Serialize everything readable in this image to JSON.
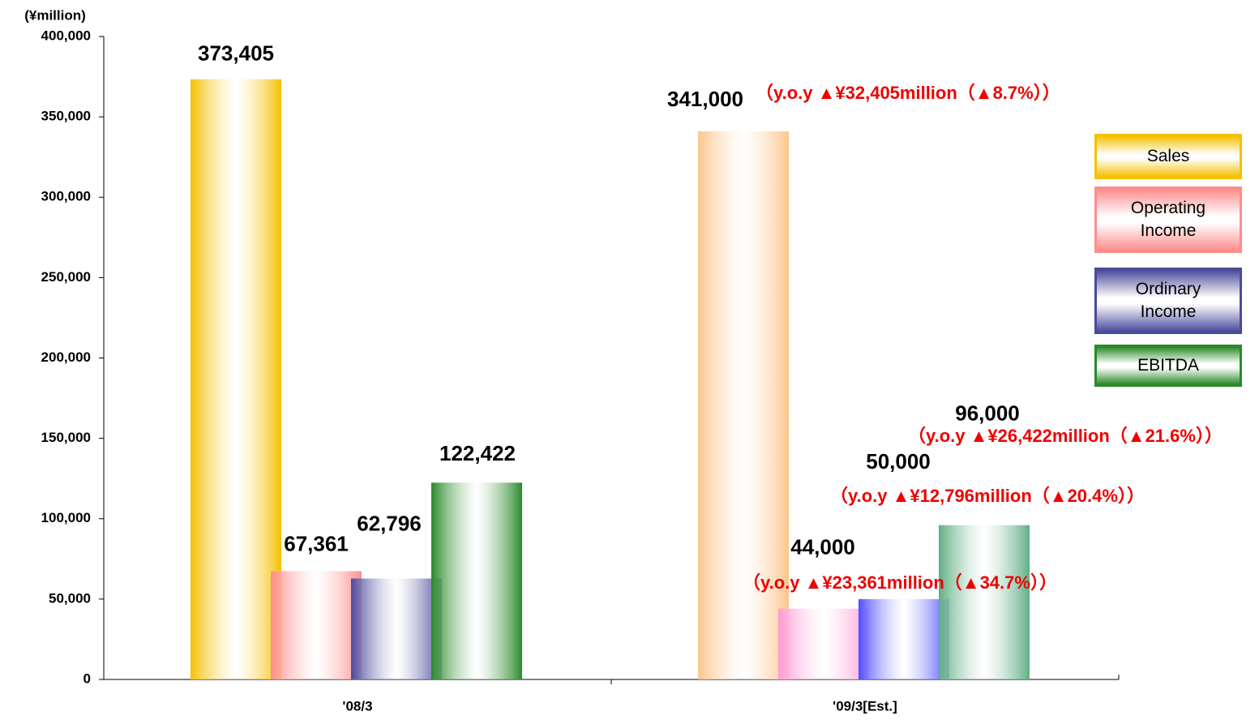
{
  "chart_data": {
    "type": "bar",
    "y_unit_label": "(¥million)",
    "categories": [
      "'08/3",
      "'09/3[Est.]"
    ],
    "series": [
      {
        "name": "Sales",
        "colors": [
          "#f5c000",
          "#fbc58a"
        ],
        "values": [
          373405,
          341000
        ],
        "value_labels": [
          "373,405",
          "341,000"
        ]
      },
      {
        "name": "Operating Income",
        "colors": [
          "#ff8c8c",
          "#ff99d6"
        ],
        "values": [
          67361,
          44000
        ],
        "value_labels": [
          "67,361",
          "44,000"
        ]
      },
      {
        "name": "Ordinary Income",
        "colors": [
          "#4a4a9c",
          "#4f4fff"
        ],
        "values": [
          62796,
          50000
        ],
        "value_labels": [
          "62,796",
          "50,000"
        ]
      },
      {
        "name": "EBITDA",
        "colors": [
          "#2a8a2a",
          "#5fae84"
        ],
        "values": [
          122422,
          96000
        ],
        "value_labels": [
          "122,422",
          "96,000"
        ]
      }
    ],
    "annotations": [
      "（y.o.y ▲¥32,405million（▲8.7%））",
      "（y.o.y ▲¥26,422million（▲21.6%））",
      "（y.o.y ▲¥12,796million（▲20.4%））",
      "（y.o.y ▲¥23,361million（▲34.7%））"
    ],
    "ylim": [
      0,
      400000
    ],
    "yticks": [
      0,
      {
        "value": 50000,
        "label": "50,000"
      },
      {
        "value": 100000,
        "label": "100,000"
      },
      {
        "value": 150000,
        "label": "150,000"
      },
      {
        "value": 200000,
        "label": "200,000"
      },
      {
        "value": 250000,
        "label": "250,000"
      },
      {
        "value": 300000,
        "label": "300,000"
      },
      {
        "value": 350000,
        "label": "350,000"
      },
      {
        "value": 400000,
        "label": "400,000"
      }
    ],
    "grid": false
  }
}
